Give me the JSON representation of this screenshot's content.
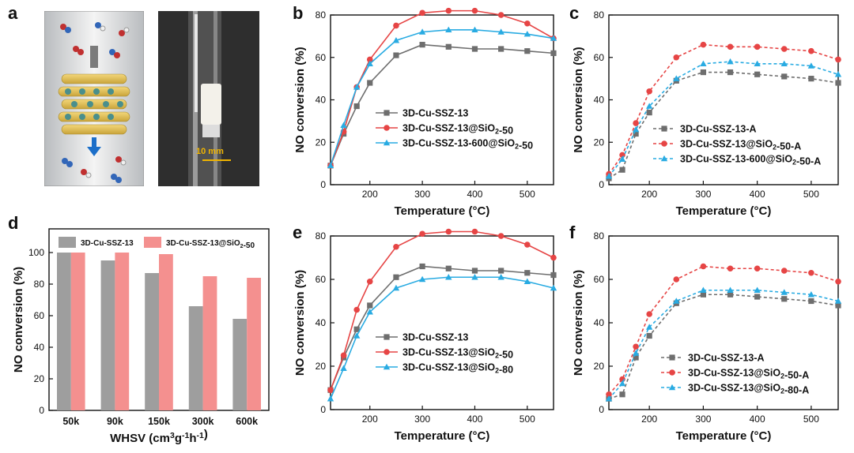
{
  "panel_letters": [
    "a",
    "b",
    "c",
    "d",
    "e",
    "f"
  ],
  "photo": {
    "scale_label": "10 mm"
  },
  "chart_data": [
    {
      "panel": "b",
      "type": "line",
      "xlabel": "Temperature (°C)",
      "ylabel": "NO conversion (%)",
      "xlim": [
        125,
        550
      ],
      "ylim": [
        0,
        80
      ],
      "xticks": [
        200,
        300,
        400,
        500
      ],
      "yticks": [
        0,
        20,
        40,
        60,
        80
      ],
      "legend_position": "center-right",
      "x": [
        125,
        150,
        175,
        200,
        250,
        300,
        350,
        400,
        450,
        500,
        550
      ],
      "series": [
        {
          "name": "3D-Cu-SSZ-13",
          "color": "#6e6e6e",
          "marker": "square",
          "dashed": false,
          "values": [
            9,
            24,
            37,
            48,
            61,
            66,
            65,
            64,
            64,
            63,
            62
          ]
        },
        {
          "name": "3D-Cu-SSZ-13@SiO2-50",
          "color": "#e64545",
          "marker": "circle",
          "dashed": false,
          "values": [
            9,
            25,
            46,
            59,
            75,
            81,
            82,
            82,
            80,
            76,
            69
          ]
        },
        {
          "name": "3D-Cu-SSZ-13-600@SiO2-50",
          "color": "#29abe2",
          "marker": "triangle",
          "dashed": false,
          "values": [
            9,
            28,
            46,
            57,
            68,
            72,
            73,
            73,
            72,
            71,
            69
          ]
        }
      ]
    },
    {
      "panel": "c",
      "type": "line",
      "xlabel": "Temperature (°C)",
      "ylabel": "NO conversion (%)",
      "xlim": [
        125,
        550
      ],
      "ylim": [
        0,
        80
      ],
      "xticks": [
        200,
        300,
        400,
        500
      ],
      "yticks": [
        0,
        20,
        40,
        60,
        80
      ],
      "legend_position": "center-right",
      "x": [
        125,
        150,
        175,
        200,
        250,
        300,
        350,
        400,
        450,
        500,
        550
      ],
      "series": [
        {
          "name": "3D-Cu-SSZ-13-A",
          "color": "#6e6e6e",
          "marker": "square",
          "dashed": true,
          "values": [
            3,
            7,
            24,
            34,
            49,
            53,
            53,
            52,
            51,
            50,
            48
          ]
        },
        {
          "name": "3D-Cu-SSZ-13@SiO2-50-A",
          "color": "#e64545",
          "marker": "circle",
          "dashed": true,
          "values": [
            5,
            14,
            29,
            44,
            60,
            66,
            65,
            65,
            64,
            63,
            59
          ]
        },
        {
          "name": "3D-Cu-SSZ-13-600@SiO2-50-A",
          "color": "#29abe2",
          "marker": "triangle",
          "dashed": true,
          "values": [
            4,
            12,
            26,
            37,
            50,
            57,
            58,
            57,
            57,
            56,
            52
          ]
        }
      ]
    },
    {
      "panel": "d",
      "type": "bar",
      "xlabel": "WHSV (cm3g-1h-1)",
      "ylabel": "NO conversion (%)",
      "ylim": [
        0,
        115
      ],
      "yticks": [
        0,
        20,
        40,
        60,
        80,
        100
      ],
      "legend_position": "top",
      "categories": [
        "50k",
        "90k",
        "150k",
        "300k",
        "600k"
      ],
      "series": [
        {
          "name": "3D-Cu-SSZ-13",
          "color": "#9e9e9e",
          "values": [
            100,
            95,
            87,
            66,
            58
          ]
        },
        {
          "name": "3D-Cu-SSZ-13@SiO2-50",
          "color": "#f4908f",
          "values": [
            100,
            100,
            99,
            85,
            84
          ]
        }
      ]
    },
    {
      "panel": "e",
      "type": "line",
      "xlabel": "Temperature (°C)",
      "ylabel": "NO conversion (%)",
      "xlim": [
        125,
        550
      ],
      "ylim": [
        0,
        80
      ],
      "xticks": [
        200,
        300,
        400,
        500
      ],
      "yticks": [
        0,
        20,
        40,
        60,
        80
      ],
      "legend_position": "bottom-right",
      "x": [
        125,
        150,
        175,
        200,
        250,
        300,
        350,
        400,
        450,
        500,
        550
      ],
      "series": [
        {
          "name": "3D-Cu-SSZ-13",
          "color": "#6e6e6e",
          "marker": "square",
          "dashed": false,
          "values": [
            9,
            24,
            37,
            48,
            61,
            66,
            65,
            64,
            64,
            63,
            62
          ]
        },
        {
          "name": "3D-Cu-SSZ-13@SiO2-50",
          "color": "#e64545",
          "marker": "circle",
          "dashed": false,
          "values": [
            9,
            25,
            46,
            59,
            75,
            81,
            82,
            82,
            80,
            76,
            70
          ]
        },
        {
          "name": "3D-Cu-SSZ-13@SiO2-80",
          "color": "#29abe2",
          "marker": "triangle",
          "dashed": false,
          "values": [
            5,
            19,
            34,
            45,
            56,
            60,
            61,
            61,
            61,
            59,
            56
          ]
        }
      ]
    },
    {
      "panel": "f",
      "type": "line",
      "xlabel": "Temperature (°C)",
      "ylabel": "NO conversion (%)",
      "xlim": [
        125,
        550
      ],
      "ylim": [
        0,
        80
      ],
      "xticks": [
        200,
        300,
        400,
        500
      ],
      "yticks": [
        0,
        20,
        40,
        60,
        80
      ],
      "legend_position": "bottom-right",
      "x": [
        125,
        150,
        175,
        200,
        250,
        300,
        350,
        400,
        450,
        500,
        550
      ],
      "series": [
        {
          "name": "3D-Cu-SSZ-13-A",
          "color": "#6e6e6e",
          "marker": "square",
          "dashed": true,
          "values": [
            5,
            7,
            24,
            34,
            49,
            53,
            53,
            52,
            51,
            50,
            48
          ]
        },
        {
          "name": "3D-Cu-SSZ-13@SiO2-50-A",
          "color": "#e64545",
          "marker": "circle",
          "dashed": true,
          "values": [
            7,
            14,
            29,
            44,
            60,
            66,
            65,
            65,
            64,
            63,
            59
          ]
        },
        {
          "name": "3D-Cu-SSZ-13@SiO2-80-A",
          "color": "#29abe2",
          "marker": "triangle",
          "dashed": true,
          "values": [
            5,
            12,
            26,
            38,
            50,
            55,
            55,
            55,
            54,
            53,
            50
          ]
        }
      ]
    }
  ]
}
